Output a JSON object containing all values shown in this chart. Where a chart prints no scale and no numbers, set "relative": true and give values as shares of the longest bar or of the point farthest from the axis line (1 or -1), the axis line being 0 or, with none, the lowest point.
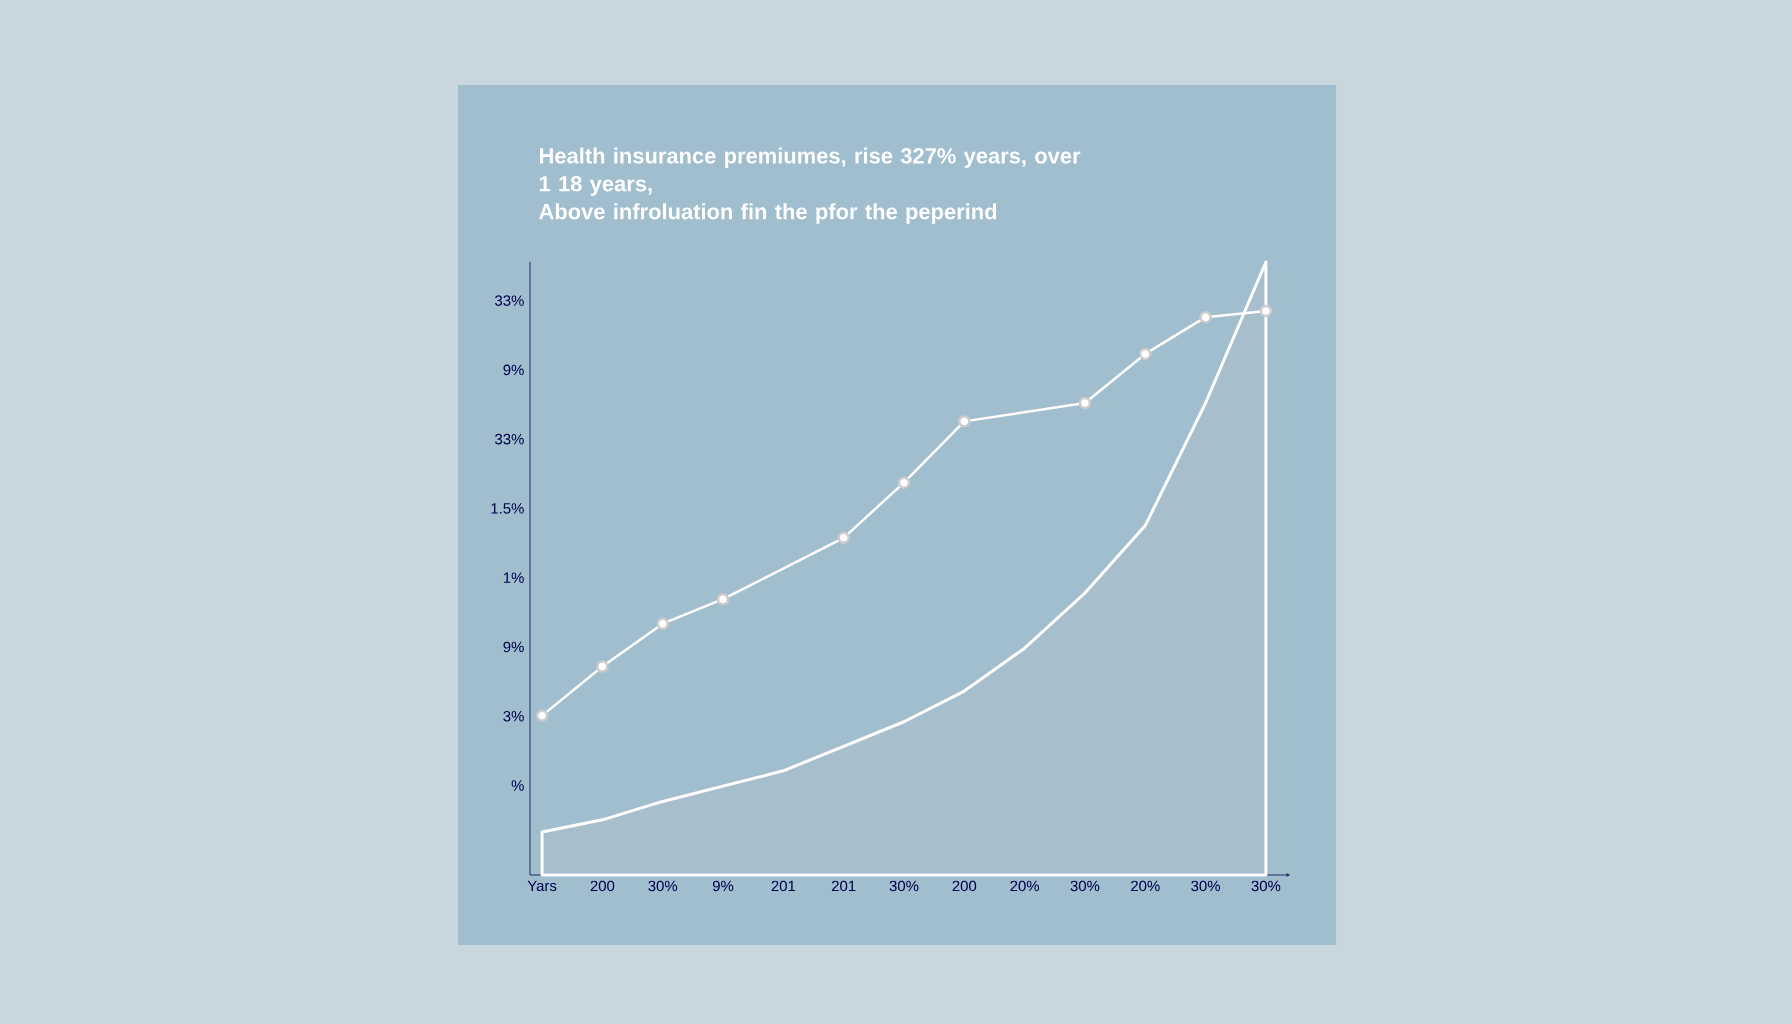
{
  "chart_data": {
    "type": "line",
    "title": "Health insurance premiumes,   rise   327% years, over 1 18 years,",
    "subtitle": "Above infroluation  fin the pfor  the peperind",
    "relative": true,
    "categories": [
      "Yars",
      "200",
      "30%",
      "9%",
      "201",
      "201",
      "30%",
      "200",
      "20%",
      "30%",
      "20%",
      "30%",
      "30%"
    ],
    "annotations": [
      "%",
      "3%",
      "9%",
      "1%",
      "1.5%",
      "33%",
      "9%",
      "33%"
    ],
    "series": [
      {
        "type": "area",
        "color": "#a7bfcc",
        "values": [
          0.07,
          0.09,
          0.12,
          0.145,
          0.17,
          0.21,
          0.25,
          0.3,
          0.37,
          0.46,
          0.57,
          0.77,
          1.0
        ]
      },
      {
        "color": "#ffffff",
        "marker": "circle",
        "values": [
          0.26,
          0.34,
          0.41,
          0.45,
          null,
          0.55,
          0.64,
          0.74,
          null,
          0.77,
          0.85,
          0.91,
          0.92
        ]
      }
    ]
  }
}
